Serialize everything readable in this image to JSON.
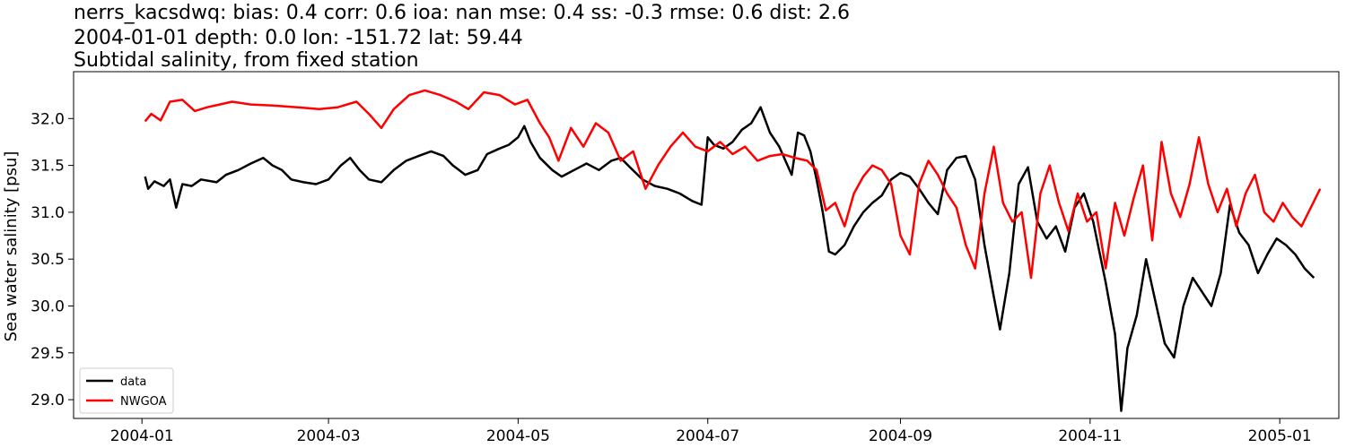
{
  "chart_data": {
    "type": "line",
    "title_lines": [
      "nerrs_kacsdwq: bias: 0.4  corr: 0.6  ioa: nan  mse: 0.4  ss: -0.3  rmse: 0.6  dist: 2.6",
      "2004-01-01 depth: 0.0 lon: -151.72 lat: 59.44",
      "Subtidal salinity, from fixed station"
    ],
    "xlabel": "",
    "ylabel": "Sea water salinity [psu]",
    "xlim": [
      "2003-12-10",
      "2005-01-20"
    ],
    "ylim": [
      28.8,
      32.5
    ],
    "x_ticks": [
      "2004-01",
      "2004-03",
      "2004-05",
      "2004-07",
      "2004-09",
      "2004-11",
      "2005-01"
    ],
    "y_ticks": [
      "29.0",
      "29.5",
      "30.0",
      "30.5",
      "31.0",
      "31.5",
      "32.0"
    ],
    "legend_position": "lower-left",
    "grid": false,
    "series": [
      {
        "name": "data",
        "color": "#000000",
        "points": [
          [
            "2004-01-02",
            31.38
          ],
          [
            "2004-01-03",
            31.25
          ],
          [
            "2004-01-05",
            31.33
          ],
          [
            "2004-01-08",
            31.28
          ],
          [
            "2004-01-10",
            31.35
          ],
          [
            "2004-01-12",
            31.05
          ],
          [
            "2004-01-14",
            31.3
          ],
          [
            "2004-01-17",
            31.28
          ],
          [
            "2004-01-20",
            31.35
          ],
          [
            "2004-01-25",
            31.32
          ],
          [
            "2004-01-28",
            31.4
          ],
          [
            "2004-02-01",
            31.45
          ],
          [
            "2004-02-05",
            31.52
          ],
          [
            "2004-02-09",
            31.58
          ],
          [
            "2004-02-12",
            31.5
          ],
          [
            "2004-02-15",
            31.45
          ],
          [
            "2004-02-18",
            31.35
          ],
          [
            "2004-02-22",
            31.32
          ],
          [
            "2004-02-26",
            31.3
          ],
          [
            "2004-03-01",
            31.35
          ],
          [
            "2004-03-05",
            31.5
          ],
          [
            "2004-03-08",
            31.58
          ],
          [
            "2004-03-11",
            31.45
          ],
          [
            "2004-03-14",
            31.35
          ],
          [
            "2004-03-18",
            31.32
          ],
          [
            "2004-03-22",
            31.45
          ],
          [
            "2004-03-26",
            31.55
          ],
          [
            "2004-03-30",
            31.6
          ],
          [
            "2004-04-03",
            31.65
          ],
          [
            "2004-04-07",
            31.6
          ],
          [
            "2004-04-10",
            31.5
          ],
          [
            "2004-04-14",
            31.4
          ],
          [
            "2004-04-18",
            31.45
          ],
          [
            "2004-04-21",
            31.62
          ],
          [
            "2004-04-25",
            31.68
          ],
          [
            "2004-04-28",
            31.72
          ],
          [
            "2004-05-01",
            31.8
          ],
          [
            "2004-05-03",
            31.92
          ],
          [
            "2004-05-05",
            31.75
          ],
          [
            "2004-05-08",
            31.58
          ],
          [
            "2004-05-12",
            31.45
          ],
          [
            "2004-05-15",
            31.38
          ],
          [
            "2004-05-19",
            31.45
          ],
          [
            "2004-05-23",
            31.52
          ],
          [
            "2004-05-27",
            31.45
          ],
          [
            "2004-05-31",
            31.55
          ],
          [
            "2004-06-03",
            31.58
          ],
          [
            "2004-06-06",
            31.48
          ],
          [
            "2004-06-10",
            31.35
          ],
          [
            "2004-06-14",
            31.28
          ],
          [
            "2004-06-18",
            31.25
          ],
          [
            "2004-06-22",
            31.2
          ],
          [
            "2004-06-26",
            31.12
          ],
          [
            "2004-06-29",
            31.08
          ],
          [
            "2004-07-01",
            31.8
          ],
          [
            "2004-07-03",
            31.72
          ],
          [
            "2004-07-06",
            31.68
          ],
          [
            "2004-07-09",
            31.75
          ],
          [
            "2004-07-12",
            31.88
          ],
          [
            "2004-07-15",
            31.95
          ],
          [
            "2004-07-18",
            32.12
          ],
          [
            "2004-07-21",
            31.85
          ],
          [
            "2004-07-24",
            31.7
          ],
          [
            "2004-07-26",
            31.55
          ],
          [
            "2004-07-28",
            31.4
          ],
          [
            "2004-07-30",
            31.85
          ],
          [
            "2004-08-01",
            31.82
          ],
          [
            "2004-08-03",
            31.65
          ],
          [
            "2004-08-05",
            31.35
          ],
          [
            "2004-08-07",
            31.0
          ],
          [
            "2004-08-09",
            30.58
          ],
          [
            "2004-08-11",
            30.55
          ],
          [
            "2004-08-14",
            30.65
          ],
          [
            "2004-08-17",
            30.85
          ],
          [
            "2004-08-20",
            31.0
          ],
          [
            "2004-08-23",
            31.1
          ],
          [
            "2004-08-26",
            31.18
          ],
          [
            "2004-08-29",
            31.35
          ],
          [
            "2004-09-01",
            31.42
          ],
          [
            "2004-09-04",
            31.38
          ],
          [
            "2004-09-07",
            31.25
          ],
          [
            "2004-09-10",
            31.1
          ],
          [
            "2004-09-13",
            30.98
          ],
          [
            "2004-09-16",
            31.45
          ],
          [
            "2004-09-19",
            31.58
          ],
          [
            "2004-09-22",
            31.6
          ],
          [
            "2004-09-25",
            31.35
          ],
          [
            "2004-09-28",
            30.65
          ],
          [
            "2004-10-01",
            30.1
          ],
          [
            "2004-10-03",
            29.75
          ],
          [
            "2004-10-06",
            30.35
          ],
          [
            "2004-10-09",
            31.3
          ],
          [
            "2004-10-12",
            31.48
          ],
          [
            "2004-10-15",
            30.9
          ],
          [
            "2004-10-18",
            30.72
          ],
          [
            "2004-10-21",
            30.85
          ],
          [
            "2004-10-24",
            30.58
          ],
          [
            "2004-10-27",
            31.05
          ],
          [
            "2004-10-30",
            31.2
          ],
          [
            "2004-11-02",
            30.9
          ],
          [
            "2004-11-06",
            30.25
          ],
          [
            "2004-11-09",
            29.7
          ],
          [
            "2004-11-11",
            28.88
          ],
          [
            "2004-11-13",
            29.55
          ],
          [
            "2004-11-16",
            29.9
          ],
          [
            "2004-11-19",
            30.5
          ],
          [
            "2004-11-22",
            30.05
          ],
          [
            "2004-11-25",
            29.6
          ],
          [
            "2004-11-28",
            29.45
          ],
          [
            "2004-12-01",
            30.0
          ],
          [
            "2004-12-04",
            30.3
          ],
          [
            "2004-12-07",
            30.15
          ],
          [
            "2004-12-10",
            30.0
          ],
          [
            "2004-12-13",
            30.35
          ],
          [
            "2004-12-16",
            31.08
          ],
          [
            "2004-12-19",
            30.78
          ],
          [
            "2004-12-22",
            30.65
          ],
          [
            "2004-12-25",
            30.35
          ],
          [
            "2004-12-28",
            30.55
          ],
          [
            "2004-12-31",
            30.72
          ],
          [
            "2005-01-03",
            30.65
          ],
          [
            "2005-01-06",
            30.55
          ],
          [
            "2005-01-09",
            30.4
          ],
          [
            "2005-01-12",
            30.3
          ]
        ]
      },
      {
        "name": "NWGOA",
        "color": "#ff0000",
        "points": [
          [
            "2004-01-02",
            31.97
          ],
          [
            "2004-01-04",
            32.05
          ],
          [
            "2004-01-07",
            31.98
          ],
          [
            "2004-01-10",
            32.18
          ],
          [
            "2004-01-14",
            32.2
          ],
          [
            "2004-01-18",
            32.08
          ],
          [
            "2004-01-22",
            32.12
          ],
          [
            "2004-01-26",
            32.15
          ],
          [
            "2004-01-30",
            32.18
          ],
          [
            "2004-02-05",
            32.15
          ],
          [
            "2004-02-12",
            32.14
          ],
          [
            "2004-02-20",
            32.12
          ],
          [
            "2004-02-27",
            32.1
          ],
          [
            "2004-03-04",
            32.12
          ],
          [
            "2004-03-10",
            32.18
          ],
          [
            "2004-03-14",
            32.05
          ],
          [
            "2004-03-18",
            31.9
          ],
          [
            "2004-03-22",
            32.1
          ],
          [
            "2004-03-27",
            32.25
          ],
          [
            "2004-04-01",
            32.3
          ],
          [
            "2004-04-06",
            32.25
          ],
          [
            "2004-04-11",
            32.18
          ],
          [
            "2004-04-15",
            32.1
          ],
          [
            "2004-04-20",
            32.28
          ],
          [
            "2004-04-25",
            32.25
          ],
          [
            "2004-04-30",
            32.15
          ],
          [
            "2004-05-04",
            32.2
          ],
          [
            "2004-05-08",
            31.95
          ],
          [
            "2004-05-11",
            31.8
          ],
          [
            "2004-05-14",
            31.55
          ],
          [
            "2004-05-18",
            31.9
          ],
          [
            "2004-05-22",
            31.7
          ],
          [
            "2004-05-26",
            31.95
          ],
          [
            "2004-05-30",
            31.85
          ],
          [
            "2004-06-03",
            31.55
          ],
          [
            "2004-06-07",
            31.65
          ],
          [
            "2004-06-11",
            31.25
          ],
          [
            "2004-06-15",
            31.5
          ],
          [
            "2004-06-19",
            31.7
          ],
          [
            "2004-06-23",
            31.85
          ],
          [
            "2004-06-27",
            31.7
          ],
          [
            "2004-07-01",
            31.65
          ],
          [
            "2004-07-05",
            31.75
          ],
          [
            "2004-07-09",
            31.62
          ],
          [
            "2004-07-13",
            31.7
          ],
          [
            "2004-07-17",
            31.55
          ],
          [
            "2004-07-21",
            31.6
          ],
          [
            "2004-07-25",
            31.62
          ],
          [
            "2004-07-29",
            31.58
          ],
          [
            "2004-08-02",
            31.55
          ],
          [
            "2004-08-05",
            31.45
          ],
          [
            "2004-08-08",
            31.02
          ],
          [
            "2004-08-11",
            31.1
          ],
          [
            "2004-08-14",
            30.85
          ],
          [
            "2004-08-17",
            31.2
          ],
          [
            "2004-08-20",
            31.38
          ],
          [
            "2004-08-23",
            31.5
          ],
          [
            "2004-08-26",
            31.45
          ],
          [
            "2004-08-29",
            31.3
          ],
          [
            "2004-09-01",
            30.75
          ],
          [
            "2004-09-04",
            30.55
          ],
          [
            "2004-09-07",
            31.3
          ],
          [
            "2004-09-10",
            31.55
          ],
          [
            "2004-09-13",
            31.4
          ],
          [
            "2004-09-16",
            31.2
          ],
          [
            "2004-09-19",
            31.05
          ],
          [
            "2004-09-22",
            30.65
          ],
          [
            "2004-09-25",
            30.4
          ],
          [
            "2004-09-28",
            31.2
          ],
          [
            "2004-10-01",
            31.7
          ],
          [
            "2004-10-04",
            31.1
          ],
          [
            "2004-10-07",
            30.9
          ],
          [
            "2004-10-10",
            31.0
          ],
          [
            "2004-10-13",
            30.3
          ],
          [
            "2004-10-16",
            31.2
          ],
          [
            "2004-10-19",
            31.5
          ],
          [
            "2004-10-22",
            31.1
          ],
          [
            "2004-10-25",
            30.8
          ],
          [
            "2004-10-28",
            31.2
          ],
          [
            "2004-10-31",
            30.9
          ],
          [
            "2004-11-03",
            31.0
          ],
          [
            "2004-11-06",
            30.4
          ],
          [
            "2004-11-09",
            31.1
          ],
          [
            "2004-11-12",
            30.75
          ],
          [
            "2004-11-15",
            31.15
          ],
          [
            "2004-11-18",
            31.5
          ],
          [
            "2004-11-21",
            30.7
          ],
          [
            "2004-11-24",
            31.75
          ],
          [
            "2004-11-27",
            31.2
          ],
          [
            "2004-11-30",
            30.95
          ],
          [
            "2004-12-03",
            31.3
          ],
          [
            "2004-12-06",
            31.8
          ],
          [
            "2004-12-09",
            31.3
          ],
          [
            "2004-12-12",
            31.0
          ],
          [
            "2004-12-15",
            31.25
          ],
          [
            "2004-12-18",
            30.85
          ],
          [
            "2004-12-21",
            31.2
          ],
          [
            "2004-12-24",
            31.4
          ],
          [
            "2004-12-27",
            31.0
          ],
          [
            "2004-12-30",
            30.9
          ],
          [
            "2005-01-02",
            31.1
          ],
          [
            "2005-01-05",
            30.95
          ],
          [
            "2005-01-08",
            30.85
          ],
          [
            "2005-01-11",
            31.05
          ],
          [
            "2005-01-14",
            31.25
          ]
        ]
      }
    ]
  }
}
